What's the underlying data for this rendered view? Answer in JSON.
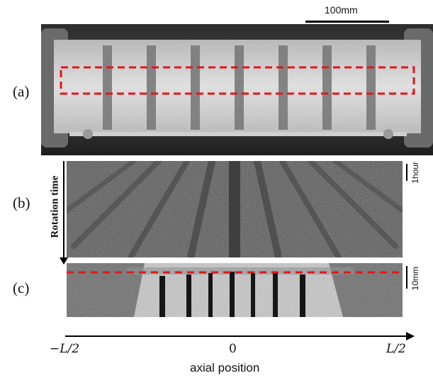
{
  "figure": {
    "scale_bar_label": "100mm",
    "panel_labels": [
      "(a)",
      "(b)",
      "(c)"
    ],
    "b_y_label": "Rotation time",
    "b_time_scale": "1hour",
    "c_scale": "10mm",
    "x_axis": {
      "left": "−L/2",
      "center": "0",
      "right": "L/2",
      "title": "axial position"
    }
  },
  "colors": {
    "highlight": "#e4151a",
    "ink": "#111111"
  }
}
